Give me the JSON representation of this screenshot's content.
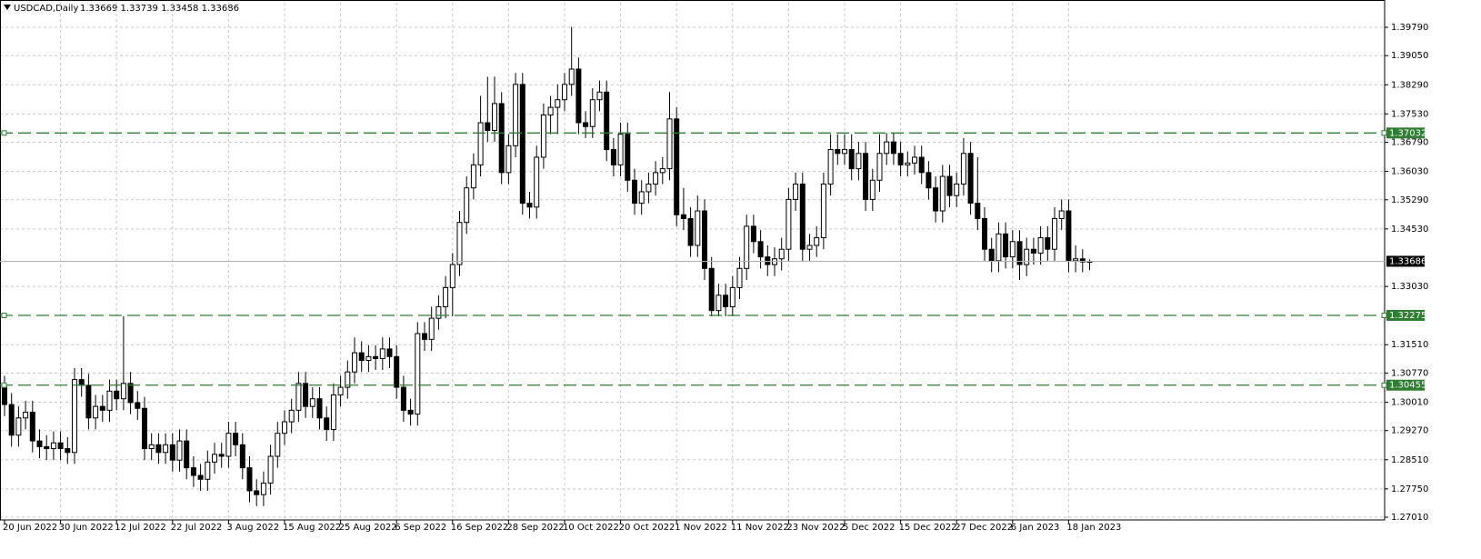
{
  "chart_data": {
    "type": "candlestick",
    "title": "USDCAD,Daily",
    "ohlc_text": "1.33669 1.33739 1.33458 1.33686",
    "categories": [
      "20 Jun 2022",
      null,
      null,
      null,
      null,
      null,
      null,
      null,
      "30 Jun 2022",
      null,
      null,
      null,
      null,
      null,
      null,
      null,
      "12 Jul 2022",
      null,
      null,
      null,
      null,
      null,
      null,
      null,
      "22 Jul 2022",
      null,
      null,
      null,
      null,
      null,
      null,
      null,
      "3 Aug 2022",
      null,
      null,
      null,
      null,
      null,
      null,
      null,
      "15 Aug 2022",
      null,
      null,
      null,
      null,
      null,
      null,
      null,
      "25 Aug 2022",
      null,
      null,
      null,
      null,
      null,
      null,
      null,
      "6 Sep 2022",
      null,
      null,
      null,
      null,
      null,
      null,
      null,
      "16 Sep 2022",
      null,
      null,
      null,
      null,
      null,
      null,
      null,
      "28 Sep 2022",
      null,
      null,
      null,
      null,
      null,
      null,
      null,
      "10 Oct 2022",
      null,
      null,
      null,
      null,
      null,
      null,
      null,
      "20 Oct 2022",
      null,
      null,
      null,
      null,
      null,
      null,
      null,
      "1 Nov 2022",
      null,
      null,
      null,
      null,
      null,
      null,
      null,
      "11 Nov 2022",
      null,
      null,
      null,
      null,
      null,
      null,
      null,
      "23 Nov 2022",
      null,
      null,
      null,
      null,
      null,
      null,
      null,
      "5 Dec 2022",
      null,
      null,
      null,
      null,
      null,
      null,
      null,
      "15 Dec 2022",
      null,
      null,
      null,
      null,
      null,
      null,
      null,
      "27 Dec 2022",
      null,
      null,
      null,
      null,
      null,
      null,
      null,
      "6 Jan 2023",
      null,
      null,
      null,
      null,
      null,
      null,
      null,
      "18 Jan 2023",
      null,
      null,
      null
    ],
    "open": [
      1.304,
      1.2995,
      1.2915,
      1.296,
      1.2975,
      1.29,
      1.2885,
      1.288,
      1.2895,
      1.288,
      1.287,
      1.306,
      1.3045,
      1.296,
      1.299,
      1.298,
      1.303,
      1.301,
      1.305,
      1.3,
      1.2985,
      1.288,
      1.289,
      1.287,
      1.289,
      1.285,
      1.29,
      1.283,
      1.281,
      1.28,
      1.2845,
      1.2865,
      1.286,
      1.292,
      1.289,
      1.283,
      1.277,
      1.276,
      1.279,
      1.286,
      1.292,
      1.295,
      1.298,
      1.305,
      1.299,
      1.301,
      1.296,
      1.293,
      1.302,
      1.304,
      1.308,
      1.313,
      1.311,
      1.312,
      1.3115,
      1.314,
      1.312,
      1.304,
      1.298,
      1.297,
      1.318,
      1.3165,
      1.322,
      1.325,
      1.33,
      1.336,
      1.347,
      1.356,
      1.362,
      1.373,
      1.371,
      1.378,
      1.36,
      1.367,
      1.383,
      1.352,
      1.351,
      1.364,
      1.375,
      1.377,
      1.379,
      1.383,
      1.387,
      1.373,
      1.372,
      1.379,
      1.381,
      1.366,
      1.362,
      1.37,
      1.358,
      1.352,
      1.355,
      1.357,
      1.36,
      1.361,
      1.374,
      1.349,
      1.348,
      1.341,
      1.35,
      1.335,
      1.324,
      1.328,
      1.325,
      1.33,
      1.335,
      1.346,
      1.342,
      1.338,
      1.336,
      1.3375,
      1.34,
      1.353,
      1.357,
      1.34,
      1.341,
      1.343,
      1.357,
      1.366,
      1.365,
      1.366,
      1.361,
      1.365,
      1.353,
      1.358,
      1.365,
      1.368,
      1.365,
      1.362,
      1.3625,
      1.364,
      1.36,
      1.356,
      1.35,
      1.359,
      1.354,
      1.357,
      1.365,
      1.352,
      1.348,
      1.34,
      1.337,
      1.344,
      1.338,
      1.342,
      1.336,
      1.34,
      1.339,
      1.343,
      1.34,
      1.348,
      1.35,
      1.337,
      1.3375,
      1.33669
    ],
    "high": [
      1.307,
      1.3025,
      1.299,
      1.3005,
      1.3005,
      1.293,
      1.2915,
      1.2925,
      1.2925,
      1.291,
      1.309,
      1.309,
      1.3075,
      1.302,
      1.302,
      1.306,
      1.306,
      1.3225,
      1.308,
      1.303,
      1.3015,
      1.292,
      1.292,
      1.292,
      1.292,
      1.293,
      1.293,
      1.286,
      1.284,
      1.2875,
      1.2895,
      1.2895,
      1.295,
      1.295,
      1.292,
      1.286,
      1.28,
      1.282,
      1.289,
      1.295,
      1.298,
      1.301,
      1.308,
      1.308,
      1.304,
      1.304,
      1.299,
      1.305,
      1.307,
      1.311,
      1.317,
      1.316,
      1.315,
      1.315,
      1.317,
      1.317,
      1.315,
      1.307,
      1.301,
      1.321,
      1.321,
      1.325,
      1.328,
      1.333,
      1.339,
      1.35,
      1.359,
      1.365,
      1.38,
      1.385,
      1.385,
      1.381,
      1.37,
      1.386,
      1.386,
      1.355,
      1.367,
      1.378,
      1.38,
      1.383,
      1.386,
      1.398,
      1.39,
      1.376,
      1.382,
      1.384,
      1.384,
      1.369,
      1.373,
      1.373,
      1.361,
      1.358,
      1.36,
      1.363,
      1.364,
      1.381,
      1.377,
      1.356,
      1.351,
      1.354,
      1.353,
      1.338,
      1.331,
      1.331,
      1.333,
      1.338,
      1.349,
      1.349,
      1.345,
      1.341,
      1.3405,
      1.343,
      1.356,
      1.36,
      1.36,
      1.344,
      1.346,
      1.36,
      1.37,
      1.37,
      1.37,
      1.37,
      1.368,
      1.368,
      1.361,
      1.37,
      1.3703,
      1.3703,
      1.368,
      1.3655,
      1.367,
      1.367,
      1.363,
      1.359,
      1.362,
      1.362,
      1.36,
      1.369,
      1.368,
      1.364,
      1.351,
      1.343,
      1.347,
      1.347,
      1.345,
      1.345,
      1.343,
      1.343,
      1.346,
      1.346,
      1.351,
      1.353,
      1.353,
      1.341,
      1.34,
      1.33739
    ],
    "low": [
      1.2965,
      1.2885,
      1.2885,
      1.293,
      1.287,
      1.2855,
      1.285,
      1.285,
      1.285,
      1.284,
      1.284,
      1.3015,
      1.293,
      1.293,
      1.295,
      1.295,
      1.298,
      1.298,
      1.297,
      1.2955,
      1.285,
      1.285,
      1.284,
      1.284,
      1.282,
      1.282,
      1.28,
      1.278,
      1.277,
      1.277,
      1.2815,
      1.283,
      1.283,
      1.286,
      1.28,
      1.274,
      1.273,
      1.273,
      1.276,
      1.283,
      1.289,
      1.292,
      1.295,
      1.296,
      1.296,
      1.293,
      1.29,
      1.29,
      1.299,
      1.301,
      1.305,
      1.308,
      1.308,
      1.3085,
      1.3085,
      1.309,
      1.301,
      1.295,
      1.294,
      1.294,
      1.3135,
      1.3135,
      1.319,
      1.322,
      1.3225,
      1.333,
      1.344,
      1.353,
      1.359,
      1.368,
      1.368,
      1.357,
      1.357,
      1.364,
      1.349,
      1.348,
      1.348,
      1.361,
      1.37,
      1.37,
      1.376,
      1.38,
      1.37,
      1.369,
      1.369,
      1.376,
      1.363,
      1.359,
      1.359,
      1.355,
      1.349,
      1.349,
      1.352,
      1.354,
      1.357,
      1.358,
      1.346,
      1.345,
      1.338,
      1.338,
      1.332,
      1.3225,
      1.3225,
      1.3225,
      1.3225,
      1.327,
      1.332,
      1.339,
      1.335,
      1.333,
      1.333,
      1.3345,
      1.337,
      1.35,
      1.337,
      1.337,
      1.338,
      1.34,
      1.354,
      1.362,
      1.362,
      1.358,
      1.358,
      1.35,
      1.35,
      1.355,
      1.362,
      1.362,
      1.359,
      1.359,
      1.3595,
      1.357,
      1.353,
      1.347,
      1.347,
      1.351,
      1.351,
      1.354,
      1.349,
      1.345,
      1.337,
      1.334,
      1.334,
      1.335,
      1.335,
      1.332,
      1.333,
      1.336,
      1.336,
      1.337,
      1.337,
      1.345,
      1.334,
      1.334,
      1.334,
      1.33458
    ],
    "close": [
      1.2995,
      1.2915,
      1.296,
      1.2975,
      1.29,
      1.2885,
      1.288,
      1.2895,
      1.288,
      1.287,
      1.306,
      1.3045,
      1.296,
      1.299,
      1.298,
      1.303,
      1.301,
      1.305,
      1.3,
      1.2985,
      1.288,
      1.289,
      1.287,
      1.289,
      1.285,
      1.29,
      1.283,
      1.281,
      1.28,
      1.2845,
      1.2865,
      1.286,
      1.292,
      1.289,
      1.283,
      1.277,
      1.276,
      1.279,
      1.286,
      1.292,
      1.295,
      1.298,
      1.305,
      1.299,
      1.301,
      1.296,
      1.293,
      1.302,
      1.304,
      1.308,
      1.313,
      1.311,
      1.312,
      1.3115,
      1.314,
      1.312,
      1.304,
      1.298,
      1.297,
      1.318,
      1.3165,
      1.322,
      1.325,
      1.33,
      1.336,
      1.347,
      1.356,
      1.362,
      1.373,
      1.371,
      1.378,
      1.36,
      1.367,
      1.383,
      1.352,
      1.351,
      1.364,
      1.375,
      1.377,
      1.379,
      1.383,
      1.387,
      1.373,
      1.372,
      1.379,
      1.381,
      1.366,
      1.362,
      1.37,
      1.358,
      1.352,
      1.355,
      1.357,
      1.36,
      1.361,
      1.374,
      1.349,
      1.348,
      1.341,
      1.35,
      1.335,
      1.324,
      1.328,
      1.325,
      1.33,
      1.335,
      1.346,
      1.342,
      1.338,
      1.336,
      1.3375,
      1.34,
      1.353,
      1.357,
      1.34,
      1.341,
      1.343,
      1.357,
      1.366,
      1.365,
      1.366,
      1.361,
      1.365,
      1.353,
      1.358,
      1.365,
      1.368,
      1.365,
      1.362,
      1.3625,
      1.364,
      1.36,
      1.356,
      1.35,
      1.359,
      1.354,
      1.357,
      1.365,
      1.352,
      1.348,
      1.34,
      1.337,
      1.344,
      1.338,
      1.342,
      1.336,
      1.34,
      1.339,
      1.343,
      1.34,
      1.348,
      1.35,
      1.337,
      1.3375,
      1.33669,
      1.33686
    ],
    "ylim": [
      1.2694,
      1.4043
    ],
    "yticks": [
      {
        "value": 1.3979,
        "label": "1.39790"
      },
      {
        "value": 1.3905,
        "label": "1.39050"
      },
      {
        "value": 1.3829,
        "label": "1.38290"
      },
      {
        "value": 1.3753,
        "label": "1.37530"
      },
      {
        "value": 1.3679,
        "label": "1.36790"
      },
      {
        "value": 1.3603,
        "label": "1.36030"
      },
      {
        "value": 1.3529,
        "label": "1.35290"
      },
      {
        "value": 1.3453,
        "label": "1.34530"
      },
      {
        "value": 1.3303,
        "label": "1.33030"
      },
      {
        "value": 1.3151,
        "label": "1.31510"
      },
      {
        "value": 1.3077,
        "label": "1.30770"
      },
      {
        "value": 1.3001,
        "label": "1.30010"
      },
      {
        "value": 1.2927,
        "label": "1.29270"
      },
      {
        "value": 1.2851,
        "label": "1.28510"
      },
      {
        "value": 1.2775,
        "label": "1.27750"
      },
      {
        "value": 1.2701,
        "label": "1.27010"
      }
    ],
    "grid": true,
    "bull_color": "#ffffff",
    "bear_color": "#000000",
    "levels": [
      {
        "value": 1.37032,
        "label": "1.37032"
      },
      {
        "value": 1.32275,
        "label": "1.32275"
      },
      {
        "value": 1.30455,
        "label": "1.30455"
      }
    ],
    "level_color": "#2e7d32",
    "last_price": {
      "value": 1.33686,
      "label": "1.33686"
    }
  }
}
